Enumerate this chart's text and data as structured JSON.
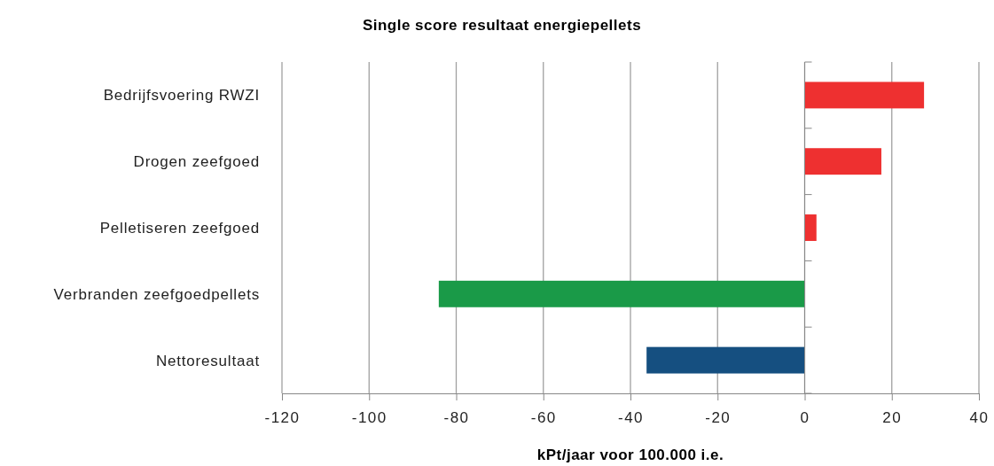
{
  "chart_data": {
    "type": "bar",
    "orientation": "horizontal",
    "title": "Single score resultaat energiepellets",
    "xlabel": "kPt/jaar voor 100.000 i.e.",
    "categories": [
      "Bedrijfsvoering RWZI",
      "Drogen zeefgoed",
      "Pelletiseren zeefgoed",
      "Verbranden zeefgoedpellets",
      "Nettoresultaat"
    ],
    "values": [
      27.4,
      17.6,
      2.7,
      -84.0,
      -36.3
    ],
    "colors": [
      "#ee3030",
      "#ee3030",
      "#ee3030",
      "#1a9a48",
      "#154f80"
    ],
    "xlim": [
      -120,
      40
    ],
    "xticks": [
      -120,
      -100,
      -80,
      -60,
      -40,
      -20,
      0,
      20,
      40
    ],
    "grid": "x"
  }
}
